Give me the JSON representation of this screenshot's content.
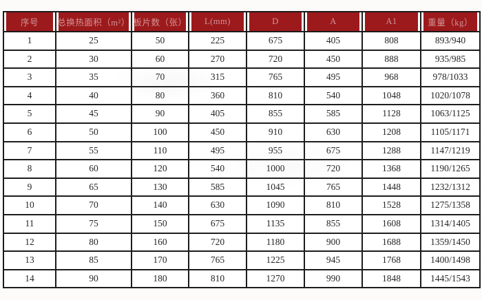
{
  "colors": {
    "header_bg": "#9c1a1c",
    "header_text": "#d49496",
    "grid_border": "#1d1b1b",
    "cell_text": "#272525",
    "page_bg": "#fcfbf9"
  },
  "chart_data": {
    "type": "table",
    "title": "",
    "columns": [
      "序号",
      "总换热面积（m²）",
      "板片数（张）",
      "L(mm)",
      "D",
      "A",
      "A1",
      "重量（kg）"
    ],
    "rows": [
      [
        "1",
        "25",
        "50",
        "225",
        "675",
        "405",
        "808",
        "893/940"
      ],
      [
        "2",
        "30",
        "60",
        "270",
        "720",
        "450",
        "888",
        "935/985"
      ],
      [
        "3",
        "35",
        "70",
        "315",
        "765",
        "495",
        "968",
        "978/1033"
      ],
      [
        "4",
        "40",
        "80",
        "360",
        "810",
        "540",
        "1048",
        "1020/1078"
      ],
      [
        "5",
        "45",
        "90",
        "405",
        "855",
        "585",
        "1128",
        "1063/1125"
      ],
      [
        "6",
        "50",
        "100",
        "450",
        "910",
        "630",
        "1208",
        "1105/1171"
      ],
      [
        "7",
        "55",
        "110",
        "495",
        "955",
        "675",
        "1288",
        "1147/1219"
      ],
      [
        "8",
        "60",
        "120",
        "540",
        "1000",
        "720",
        "1368",
        "1190/1265"
      ],
      [
        "9",
        "65",
        "130",
        "585",
        "1045",
        "765",
        "1448",
        "1232/1312"
      ],
      [
        "10",
        "70",
        "140",
        "630",
        "1090",
        "810",
        "1528",
        "1275/1358"
      ],
      [
        "11",
        "75",
        "150",
        "675",
        "1135",
        "855",
        "1608",
        "1314/1405"
      ],
      [
        "12",
        "80",
        "160",
        "720",
        "1180",
        "900",
        "1688",
        "1359/1450"
      ],
      [
        "13",
        "85",
        "170",
        "765",
        "1225",
        "945",
        "1768",
        "1400/1498"
      ],
      [
        "14",
        "90",
        "180",
        "810",
        "1270",
        "990",
        "1848",
        "1445/1543"
      ]
    ]
  }
}
